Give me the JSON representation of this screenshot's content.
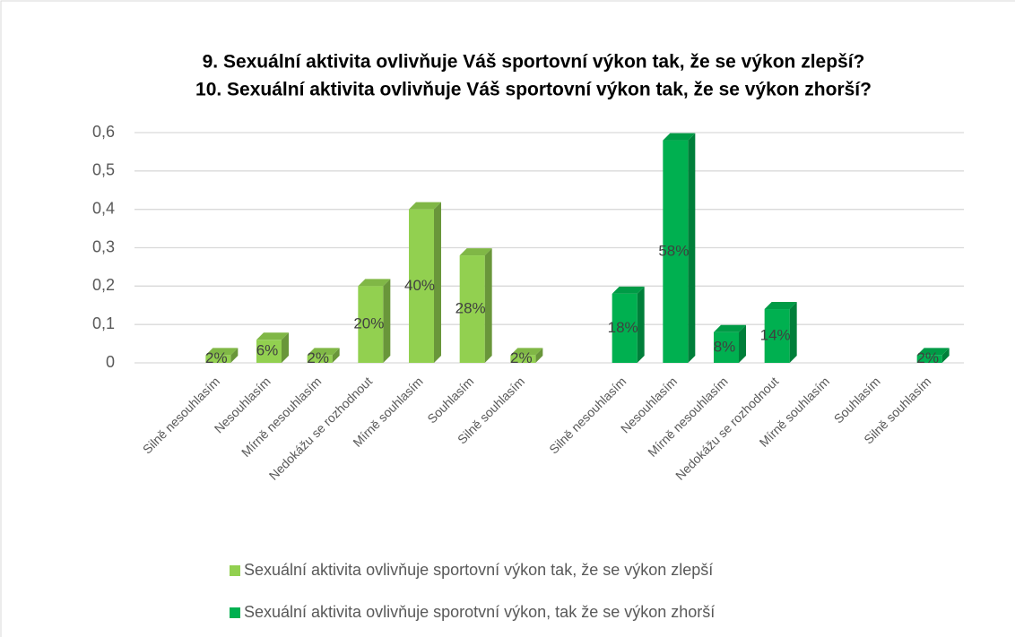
{
  "chart_data": {
    "type": "bar",
    "title": [
      "9. Sexuální aktivita ovlivňuje Váš sportovní výkon tak, že se výkon zlepší?",
      "10. Sexuální aktivita ovlivňuje Váš sportovní výkon tak, že se výkon zhorší?"
    ],
    "categories": [
      "Silně nesouhlasím",
      "Nesouhlasím",
      "Mírně nesouhlasím",
      "Nedokážu se rozhodnout",
      "Mírně souhlasím",
      "Souhlasím",
      "Silně souhlasím",
      null,
      "Silně nesouhlasím",
      "Nesouhlasím",
      "Mírně nesouhlasím",
      "Nedokážu se rozhodnout",
      "Mírně souhlasím",
      "Souhlasím",
      "Silně souhlasím"
    ],
    "series": [
      {
        "name": "Sexuální aktivita ovlivňuje sportovní výkon tak, že se výkon zlepší",
        "color": "#92d050",
        "values": [
          0.02,
          0.06,
          0.02,
          0.2,
          0.4,
          0.28,
          0.02,
          null,
          null,
          null,
          null,
          null,
          null,
          null,
          null
        ],
        "value_labels": [
          "2%",
          "6%",
          "2%",
          "20%",
          "40%",
          "28%",
          "2%",
          null,
          null,
          null,
          null,
          null,
          null,
          null,
          null
        ]
      },
      {
        "name": "Sexuální aktivita ovlivňuje sporotvní výkon, tak že se výkon zhorší",
        "color": "#00b050",
        "values": [
          null,
          null,
          null,
          null,
          null,
          null,
          null,
          null,
          0.18,
          0.58,
          0.08,
          0.14,
          null,
          null,
          0.02
        ],
        "value_labels": [
          null,
          null,
          null,
          null,
          null,
          null,
          null,
          null,
          "18%",
          "58%",
          "8%",
          "14%",
          null,
          null,
          "2%"
        ]
      }
    ],
    "ylim": [
      0,
      0.6
    ],
    "yticks": [
      0,
      {
        "value": 0.1,
        "label": "0,1"
      },
      {
        "value": 0.2,
        "label": "0,2"
      },
      {
        "value": 0.3,
        "label": "0,3"
      },
      {
        "value": 0.4,
        "label": "0,4"
      },
      {
        "value": 0.5,
        "label": "0,5"
      },
      {
        "value": 0.6,
        "label": "0,6"
      }
    ],
    "grid": true,
    "legend": "bottom"
  }
}
